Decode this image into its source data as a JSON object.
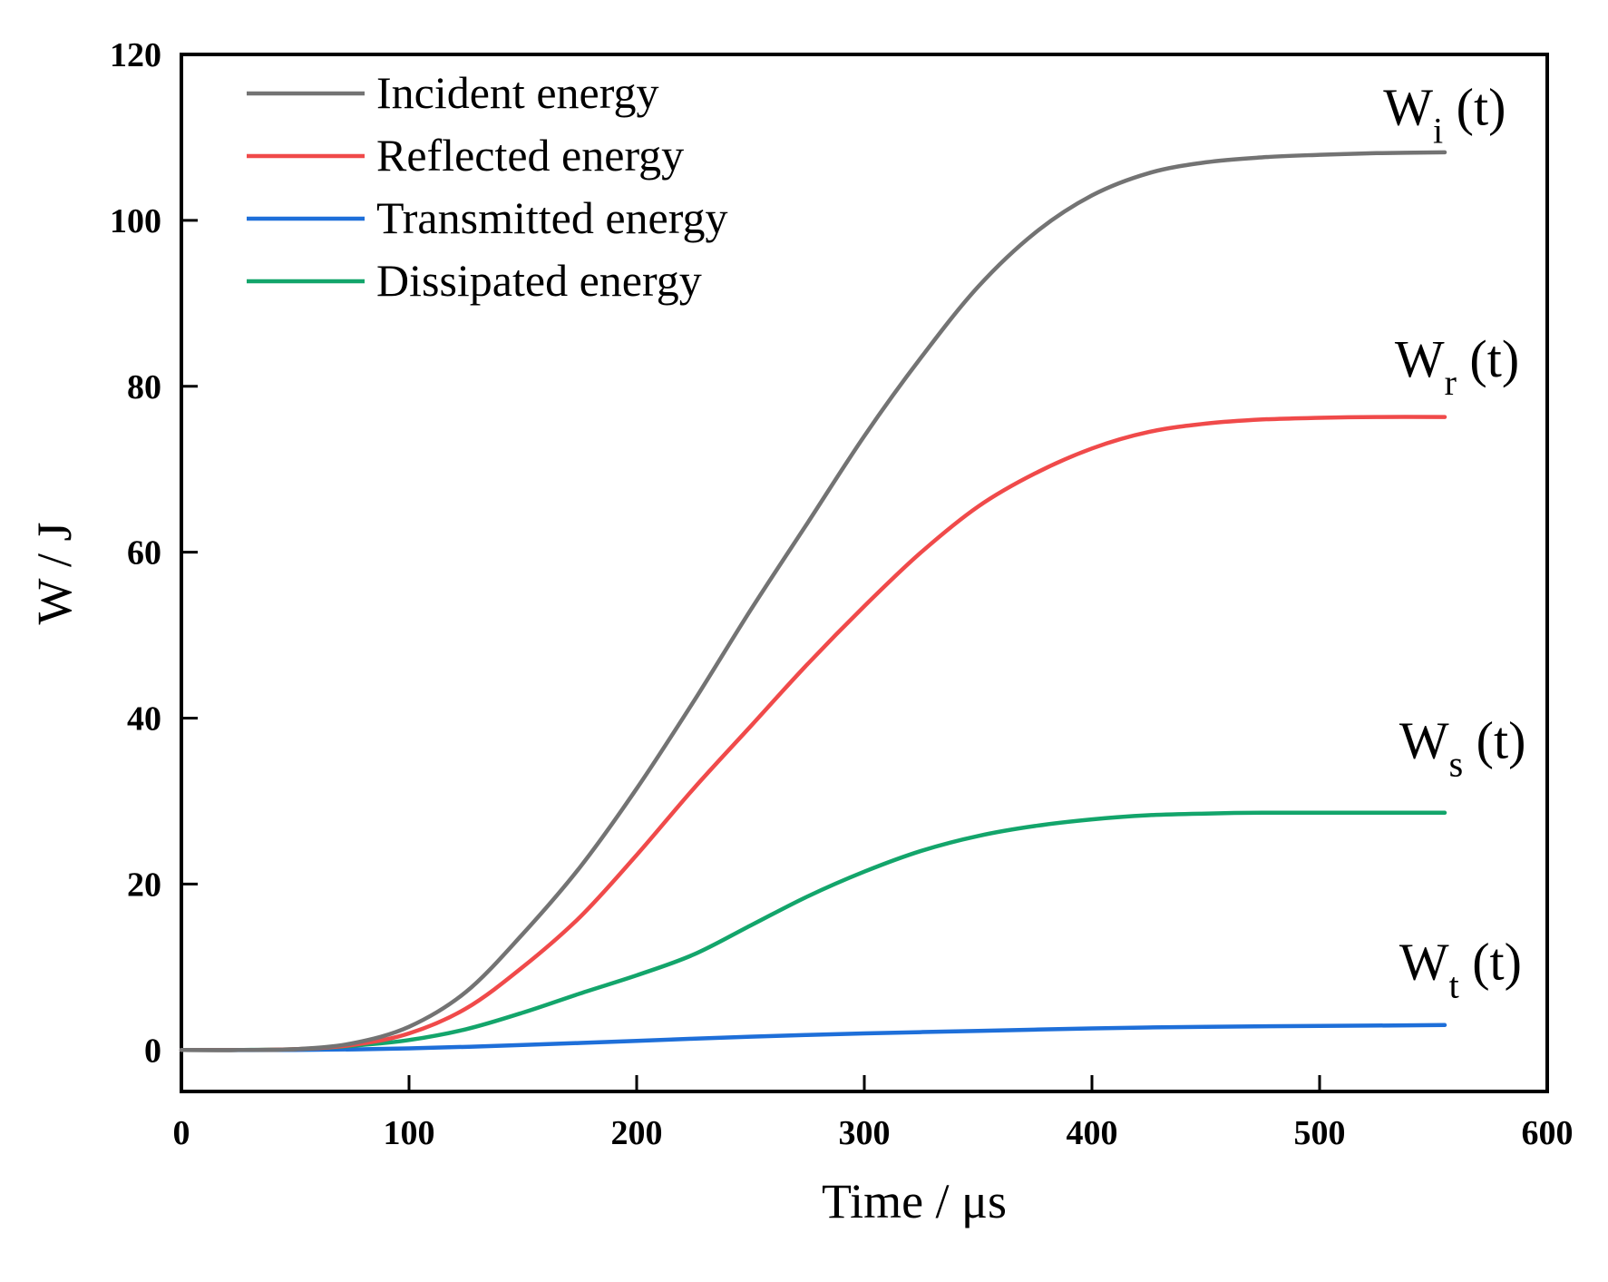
{
  "chart_data": {
    "type": "line",
    "xlabel": "Time / μs",
    "ylabel": "W / J",
    "xlim": [
      0,
      600
    ],
    "ylim": [
      -5,
      120
    ],
    "xticks": [
      0,
      100,
      200,
      300,
      400,
      500,
      600
    ],
    "yticks": [
      0,
      20,
      40,
      60,
      80,
      100,
      120
    ],
    "grid": false,
    "legend_position": "top-left",
    "series": [
      {
        "name": "Incident energy",
        "color": "#737373",
        "x": [
          0,
          25,
          50,
          75,
          100,
          125,
          150,
          175,
          200,
          225,
          250,
          275,
          300,
          325,
          350,
          375,
          400,
          425,
          450,
          475,
          500,
          525,
          555
        ],
        "y": [
          0,
          0,
          0.1,
          0.8,
          2.8,
          7,
          14,
          22,
          31.5,
          42,
          53,
          63.5,
          74,
          83.5,
          92,
          98.5,
          103,
          105.7,
          107,
          107.6,
          107.9,
          108.1,
          108.2
        ]
      },
      {
        "name": "Reflected energy",
        "color": "#f04a4a",
        "x": [
          0,
          25,
          50,
          75,
          100,
          125,
          150,
          175,
          200,
          225,
          250,
          275,
          300,
          325,
          350,
          375,
          400,
          425,
          450,
          475,
          500,
          525,
          555
        ],
        "y": [
          0,
          0,
          0.1,
          0.6,
          2,
          5,
          10,
          16,
          23.5,
          31.5,
          39,
          46.5,
          53.5,
          60,
          65.5,
          69.5,
          72.5,
          74.5,
          75.5,
          76,
          76.2,
          76.3,
          76.3
        ]
      },
      {
        "name": "Transmitted energy",
        "color": "#1e6fd9",
        "x": [
          0,
          50,
          100,
          150,
          200,
          250,
          300,
          350,
          400,
          450,
          500,
          555
        ],
        "y": [
          0,
          0,
          0.2,
          0.6,
          1.1,
          1.6,
          2,
          2.3,
          2.6,
          2.8,
          2.9,
          3
        ]
      },
      {
        "name": "Dissipated energy",
        "color": "#13a56b",
        "x": [
          0,
          25,
          50,
          75,
          100,
          125,
          150,
          175,
          200,
          225,
          250,
          275,
          300,
          325,
          350,
          375,
          400,
          425,
          450,
          475,
          500,
          525,
          555
        ],
        "y": [
          0,
          0,
          0.1,
          0.5,
          1.2,
          2.5,
          4.5,
          6.8,
          9,
          11.5,
          15,
          18.5,
          21.5,
          24,
          25.8,
          27,
          27.8,
          28.3,
          28.5,
          28.6,
          28.6,
          28.6,
          28.6
        ]
      }
    ],
    "annotations": [
      {
        "main": "W",
        "sub": "i",
        "suffix": " (t)",
        "x": 528,
        "y": 111.5
      },
      {
        "main": "W",
        "sub": "r",
        "suffix": " (t)",
        "x": 533,
        "y": 81.2
      },
      {
        "main": "W",
        "sub": "s",
        "suffix": " (t)",
        "x": 535,
        "y": 35.2
      },
      {
        "main": "W",
        "sub": "t",
        "suffix": " (t)",
        "x": 535,
        "y": 8.5
      }
    ]
  }
}
